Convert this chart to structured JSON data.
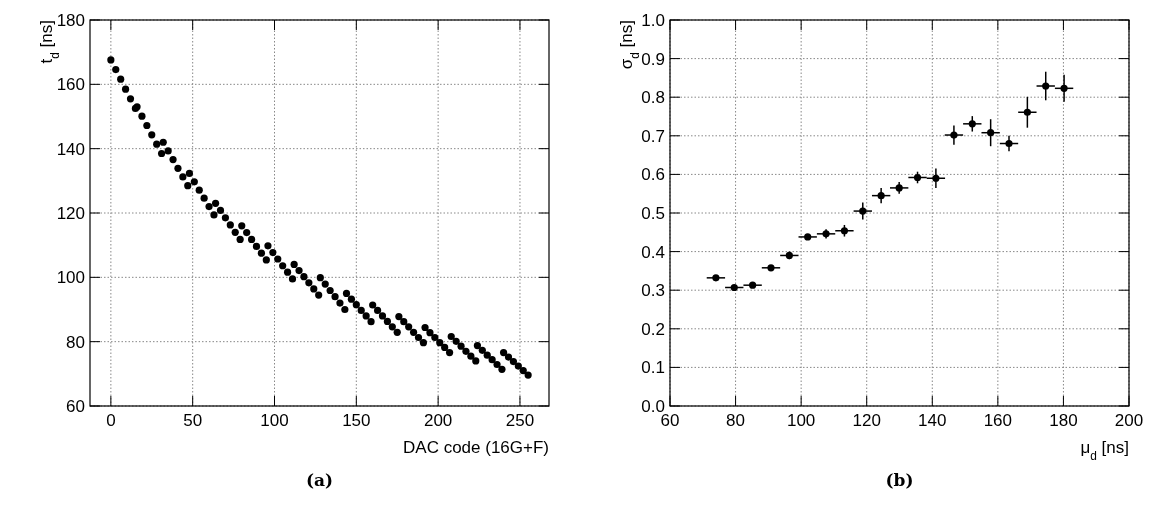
{
  "chart_data": [
    {
      "type": "scatter",
      "xlabel": "DAC code (16G+F)",
      "ylabel": "t$_{d}$ [ns]",
      "annotations": [
        "(a)"
      ],
      "xlim": [
        -12.75,
        267.75
      ],
      "xticks": [
        0,
        50,
        100,
        150,
        200,
        250
      ],
      "ylim": [
        60,
        180
      ],
      "yticks": [
        60,
        80,
        100,
        120,
        140,
        160,
        180
      ],
      "grid": true,
      "marker": "circle",
      "series": [
        {
          "color": "#000000",
          "x": [
            0,
            3,
            6,
            9,
            12,
            15,
            16,
            19,
            22,
            25,
            28,
            31,
            32,
            35,
            38,
            41,
            44,
            47,
            48,
            51,
            54,
            57,
            60,
            63,
            64,
            67,
            70,
            73,
            76,
            79,
            80,
            83,
            86,
            89,
            92,
            95,
            96,
            99,
            102,
            105,
            108,
            111,
            112,
            115,
            118,
            121,
            124,
            127,
            128,
            131,
            134,
            137,
            140,
            143,
            144,
            147,
            150,
            153,
            156,
            159,
            160,
            163,
            166,
            169,
            172,
            175,
            176,
            179,
            182,
            185,
            188,
            191,
            192,
            195,
            198,
            201,
            204,
            207,
            208,
            211,
            214,
            217,
            220,
            223,
            224,
            227,
            230,
            233,
            236,
            239,
            240,
            243,
            246,
            249,
            252,
            255
          ],
          "values": [
            167.6,
            164.6,
            161.6,
            158.5,
            155.5,
            152.5,
            153,
            150.1,
            147.2,
            144.3,
            141.4,
            138.5,
            142,
            139.3,
            136.6,
            133.9,
            131.2,
            128.5,
            132.3,
            129.7,
            127.1,
            124.6,
            122,
            119.4,
            123,
            120.8,
            118.5,
            116.3,
            114,
            111.8,
            116,
            113.9,
            111.8,
            109.6,
            107.5,
            105.4,
            109.8,
            107.7,
            105.7,
            103.6,
            101.6,
            99.5,
            104,
            102.1,
            100.2,
            98.3,
            96.4,
            94.5,
            99.9,
            97.9,
            95.9,
            94,
            92,
            90,
            95,
            93.2,
            91.5,
            89.7,
            88,
            86.2,
            91.4,
            89.7,
            88,
            86.3,
            84.6,
            82.9,
            87.8,
            86.2,
            84.6,
            82.9,
            81.3,
            79.7,
            84.4,
            82.8,
            81.3,
            79.7,
            78.2,
            76.6,
            81.6,
            80.1,
            78.6,
            77,
            75.5,
            74,
            78.8,
            77.3,
            75.8,
            74.4,
            72.9,
            71.4,
            76.6,
            75.2,
            73.8,
            72.4,
            71,
            69.6
          ]
        }
      ]
    },
    {
      "type": "scatter",
      "xlabel": "μ$_{d}$ [ns]",
      "ylabel": "σ$_{d}$ [ns]",
      "annotations": [
        "(b)"
      ],
      "xlim": [
        60,
        200
      ],
      "xticks": [
        60,
        80,
        100,
        120,
        140,
        160,
        180,
        200
      ],
      "ylim": [
        0,
        1
      ],
      "yticks": [
        {
          "value": 0,
          "label": "0.0"
        },
        0.1,
        0.2,
        0.3,
        0.4,
        0.5,
        0.6,
        0.7,
        0.8,
        0.9,
        {
          "value": 1,
          "label": "1.0"
        }
      ],
      "grid": true,
      "marker": "circle",
      "series": [
        {
          "color": "#000000",
          "x": [
            74.0,
            79.6,
            85.2,
            90.8,
            96.4,
            102.0,
            107.6,
            113.2,
            118.8,
            124.4,
            129.9,
            135.5,
            141.1,
            146.6,
            152.2,
            157.8,
            163.4,
            169.0,
            174.6,
            180.2
          ],
          "values": [
            0.332,
            0.307,
            0.313,
            0.358,
            0.39,
            0.438,
            0.446,
            0.454,
            0.505,
            0.545,
            0.565,
            0.592,
            0.59,
            0.702,
            0.731,
            0.708,
            0.68,
            0.761,
            0.829,
            0.823
          ],
          "errors": [
            0.006,
            0.005,
            0.005,
            0.006,
            0.01,
            0.006,
            0.012,
            0.015,
            0.022,
            0.02,
            0.015,
            0.015,
            0.025,
            0.025,
            0.02,
            0.035,
            0.02,
            0.04,
            0.037,
            0.035
          ],
          "xerrors": [
            2.8,
            2.8,
            2.8,
            2.8,
            2.8,
            2.8,
            2.8,
            2.8,
            2.8,
            2.8,
            2.8,
            2.8,
            2.8,
            2.8,
            2.8,
            2.8,
            2.8,
            2.8,
            2.8,
            2.8
          ]
        }
      ]
    }
  ]
}
